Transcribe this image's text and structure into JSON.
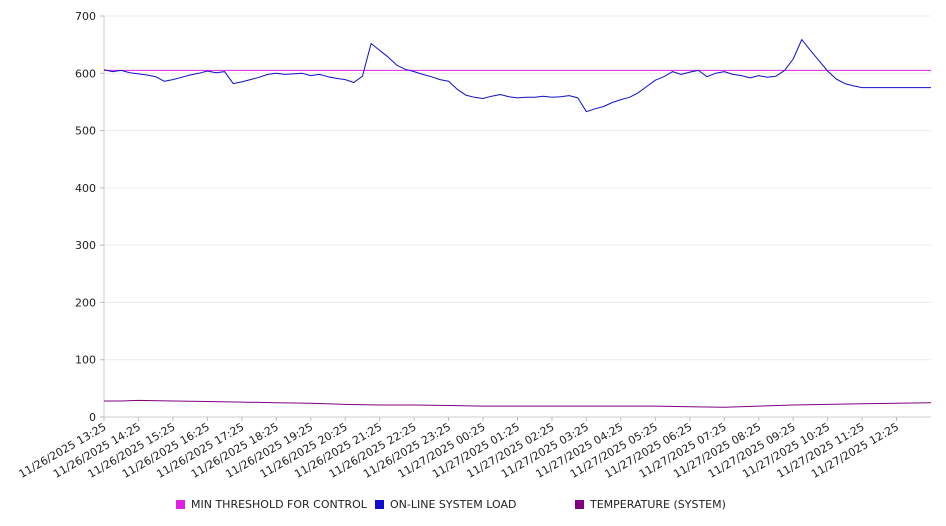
{
  "chart_data": {
    "type": "line",
    "title": "",
    "xlabel": "",
    "ylabel": "",
    "ylim": [
      0,
      700
    ],
    "yticks": [
      0,
      100,
      200,
      300,
      400,
      500,
      600,
      700
    ],
    "grid": true,
    "legend_position": "bottom",
    "x_tick_labels": [
      "11/26/2025 13:25",
      "11/26/2025 14:25",
      "11/26/2025 15:25",
      "11/26/2025 16:25",
      "11/26/2025 17:25",
      "11/26/2025 18:25",
      "11/26/2025 19:25",
      "11/26/2025 20:25",
      "11/26/2025 21:25",
      "11/26/2025 22:25",
      "11/26/2025 23:25",
      "11/27/2025 00:25",
      "11/27/2025 01:25",
      "11/27/2025 02:25",
      "11/27/2025 03:25",
      "11/27/2025 04:25",
      "11/27/2025 05:25",
      "11/27/2025 06:25",
      "11/27/2025 07:25",
      "11/27/2025 08:25",
      "11/27/2025 09:25",
      "11/27/2025 10:25",
      "11/27/2025 11:25",
      "11/27/2025 12:25"
    ],
    "x_range_hours": [
      0,
      24
    ],
    "series": [
      {
        "name": "MIN THRESHOLD FOR CONTROL",
        "color": "#e020e0",
        "x": [
          0,
          24
        ],
        "values": [
          605,
          605
        ]
      },
      {
        "name": "ON-LINE SYSTEM LOAD",
        "color": "#1010cc",
        "x": [
          0,
          0.25,
          0.5,
          0.75,
          1.0,
          1.25,
          1.5,
          1.75,
          2.0,
          2.25,
          2.5,
          2.75,
          3.0,
          3.25,
          3.5,
          3.75,
          4.0,
          4.25,
          4.5,
          4.75,
          5.0,
          5.25,
          5.5,
          5.75,
          6.0,
          6.25,
          6.5,
          6.75,
          7.0,
          7.25,
          7.5,
          7.75,
          8.0,
          8.25,
          8.5,
          8.75,
          9.0,
          9.25,
          9.5,
          9.75,
          10.0,
          10.25,
          10.5,
          10.75,
          11.0,
          11.25,
          11.5,
          11.75,
          12.0,
          12.25,
          12.5,
          12.75,
          13.0,
          13.25,
          13.5,
          13.75,
          14.0,
          14.25,
          14.5,
          14.75,
          15.0,
          15.25,
          15.5,
          15.75,
          16.0,
          16.25,
          16.5,
          16.75,
          17.0,
          17.25,
          17.5,
          17.75,
          18.0,
          18.25,
          18.5,
          18.75,
          19.0,
          19.25,
          19.5,
          19.75,
          20.0,
          20.25,
          20.5,
          20.75,
          21.0,
          21.25,
          21.5,
          21.75,
          22.0,
          22.25,
          22.5,
          22.75,
          23.0,
          23.25,
          23.5,
          23.75,
          24.0
        ],
        "values": [
          606,
          603,
          605,
          601,
          599,
          597,
          594,
          586,
          589,
          593,
          597,
          600,
          604,
          601,
          603,
          582,
          585,
          589,
          593,
          598,
          600,
          598,
          599,
          600,
          596,
          598,
          594,
          591,
          589,
          584,
          595,
          652,
          640,
          628,
          614,
          607,
          603,
          598,
          594,
          589,
          586,
          572,
          562,
          558,
          556,
          560,
          563,
          559,
          557,
          558,
          558,
          560,
          558,
          559,
          561,
          557,
          533,
          538,
          542,
          549,
          554,
          558,
          566,
          577,
          588,
          594,
          603,
          598,
          602,
          605,
          594,
          600,
          603,
          598,
          596,
          592,
          596,
          593,
          595,
          605,
          625,
          659,
          640,
          622,
          604,
          590,
          582,
          578,
          575,
          575,
          575,
          575,
          575,
          575,
          575,
          575,
          575
        ]
      },
      {
        "name": "TEMPERATURE (SYSTEM)",
        "color": "#800080",
        "x": [
          0,
          0.5,
          1.0,
          2.0,
          3.0,
          4.0,
          5.0,
          6.0,
          7.0,
          8.0,
          9.0,
          10.0,
          11.0,
          12.0,
          13.0,
          14.0,
          15.0,
          16.0,
          17.0,
          18.0,
          19.0,
          20.0,
          21.0,
          22.0,
          23.0,
          24.0
        ],
        "values": [
          28,
          28,
          29,
          28,
          27,
          26,
          25,
          24,
          22,
          21,
          21,
          20,
          19,
          19,
          19,
          19,
          19,
          19,
          18,
          17,
          19,
          21,
          22,
          23,
          24,
          25
        ]
      }
    ]
  }
}
